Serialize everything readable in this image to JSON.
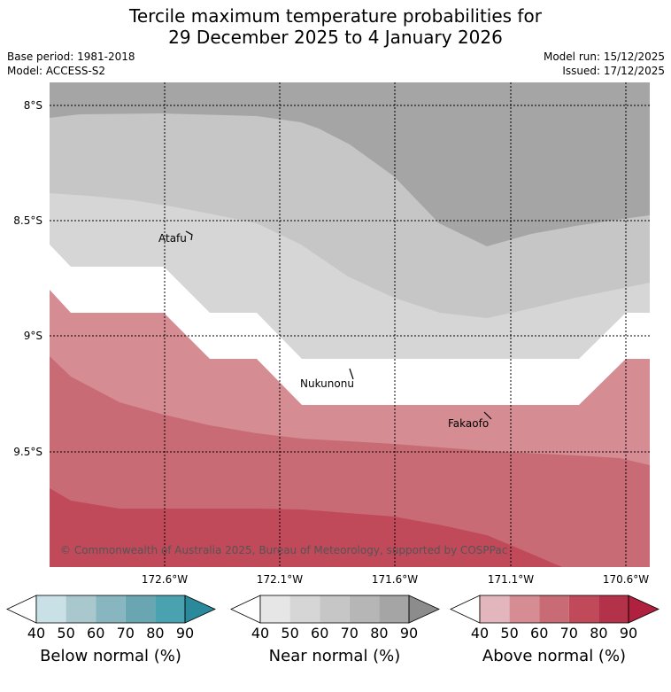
{
  "title": {
    "line1": "Tercile maximum temperature probabilities for",
    "line2": "29 December 2025 to 4 January 2026"
  },
  "meta": {
    "base_period": "Base period: 1981-2018",
    "model": "Model: ACCESS-S2",
    "model_run": "Model run: 15/12/2025",
    "issued": "Issued: 17/12/2025"
  },
  "axes": {
    "lat_labels": [
      "8°S",
      "8.5°S",
      "9°S",
      "9.5°S"
    ],
    "lon_labels": [
      "172.6°W",
      "172.1°W",
      "171.6°W",
      "171.1°W",
      "170.6°W"
    ]
  },
  "places": {
    "atafu": "Atafu",
    "nukunonu": "Nukunonu",
    "fakaofo": "Fakaofo"
  },
  "copyright": "© Commonwealth of Australia 2025, Bureau of Meteorology, supported by COSPPac",
  "colorbars": [
    {
      "label": "Below normal (%)",
      "ticks": [
        "40",
        "50",
        "60",
        "70",
        "80",
        "90"
      ],
      "colors": [
        "#ffffff",
        "#c9e1e6",
        "#a8c8cd",
        "#88b6c0",
        "#69a6b2",
        "#4aa1b0",
        "#2a8a9c"
      ]
    },
    {
      "label": "Near normal (%)",
      "ticks": [
        "40",
        "50",
        "60",
        "70",
        "80",
        "90"
      ],
      "colors": [
        "#ffffff",
        "#e6e6e6",
        "#d6d6d6",
        "#c6c6c6",
        "#b6b6b6",
        "#a5a5a5",
        "#8c8c8c"
      ]
    },
    {
      "label": "Above normal (%)",
      "ticks": [
        "40",
        "50",
        "60",
        "70",
        "80",
        "90"
      ],
      "colors": [
        "#ffffff",
        "#e2b6bc",
        "#d58d93",
        "#c96b74",
        "#c0495a",
        "#b3324a",
        "#b0203f"
      ]
    }
  ],
  "map_colors": {
    "near_80": "#a5a5a5",
    "near_70": "#c6c6c6",
    "near_60": "#d6d6d6",
    "white": "#ffffff",
    "above_50": "#d58d93",
    "above_60": "#c96b74",
    "above_70": "#c0495a"
  }
}
